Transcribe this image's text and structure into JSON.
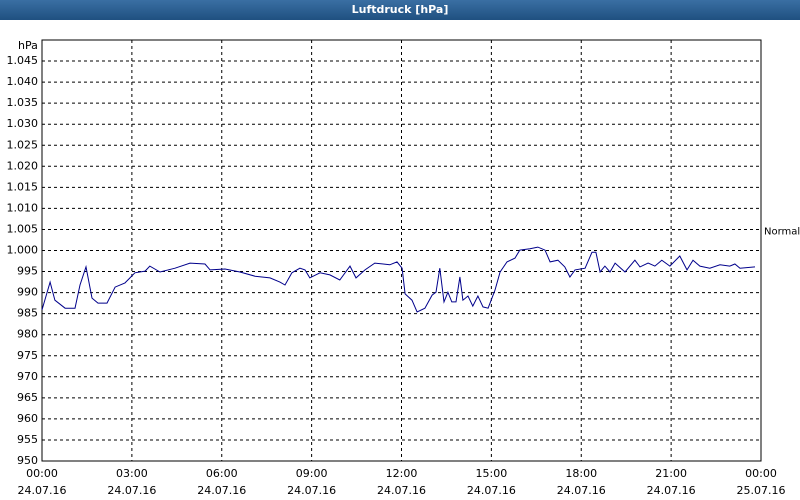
{
  "chart_data": {
    "type": "line",
    "title": "Luftdruck [hPa]",
    "y_label": "hPa",
    "x": [
      0,
      0.27,
      0.43,
      0.77,
      1.1,
      1.27,
      1.47,
      1.67,
      1.87,
      2.17,
      2.44,
      2.77,
      3.1,
      3.44,
      3.6,
      3.94,
      4.44,
      4.94,
      5.44,
      5.61,
      6.11,
      6.61,
      7.11,
      7.61,
      7.94,
      8.11,
      8.34,
      8.61,
      8.78,
      8.94,
      9.28,
      9.61,
      9.94,
      10.28,
      10.48,
      10.78,
      11.11,
      11.61,
      11.85,
      12.02,
      12.12,
      12.35,
      12.52,
      12.78,
      13.02,
      13.15,
      13.28,
      13.42,
      13.55,
      13.68,
      13.82,
      13.95,
      14.05,
      14.22,
      14.38,
      14.55,
      14.72,
      14.89,
      15.12,
      15.29,
      15.52,
      15.79,
      15.95,
      16.29,
      16.55,
      16.79,
      16.96,
      17.22,
      17.45,
      17.62,
      17.79,
      18.13,
      18.36,
      18.49,
      18.63,
      18.79,
      18.96,
      19.13,
      19.46,
      19.79,
      19.96,
      20.23,
      20.46,
      20.69,
      20.96,
      21.29,
      21.53,
      21.73,
      21.96,
      22.29,
      22.63,
      22.96,
      23.13,
      23.3,
      23.8
    ],
    "series": [
      {
        "name": "Luftdruck",
        "color": "#00008b",
        "values": [
          985.9,
          992.5,
          988.2,
          986.3,
          986.3,
          991.8,
          996.1,
          988.7,
          987.5,
          987.5,
          991.3,
          992.3,
          994.7,
          995.1,
          996.3,
          994.9,
          995.8,
          997.0,
          996.8,
          995.4,
          995.6,
          994.9,
          993.9,
          993.5,
          992.5,
          991.8,
          994.7,
          995.8,
          995.4,
          993.5,
          994.7,
          994.2,
          993.0,
          996.3,
          993.5,
          995.4,
          997.0,
          996.6,
          997.3,
          995.8,
          989.7,
          988.2,
          985.4,
          986.3,
          989.4,
          990.1,
          995.8,
          987.8,
          990.1,
          987.8,
          987.8,
          993.7,
          988.2,
          989.2,
          986.8,
          989.2,
          986.6,
          986.3,
          990.6,
          994.9,
          997.3,
          998.2,
          1000.1,
          1000.4,
          1000.8,
          1000.1,
          997.3,
          997.7,
          996.1,
          993.7,
          995.4,
          995.8,
          999.6,
          999.6,
          994.9,
          996.3,
          994.9,
          997.0,
          994.9,
          997.7,
          996.1,
          997.0,
          996.3,
          997.7,
          996.3,
          998.7,
          995.4,
          997.7,
          996.3,
          995.8,
          996.6,
          996.3,
          996.8,
          995.8,
          996.1
        ]
      }
    ],
    "xlim": [
      0,
      24
    ],
    "xticks": [
      {
        "value": 0,
        "label": "00:00\n24.07.16"
      },
      {
        "value": 3,
        "label": "03:00\n24.07.16"
      },
      {
        "value": 6,
        "label": "06:00\n24.07.16"
      },
      {
        "value": 9,
        "label": "09:00\n24.07.16"
      },
      {
        "value": 12,
        "label": "12:00\n24.07.16"
      },
      {
        "value": 15,
        "label": "15:00\n24.07.16"
      },
      {
        "value": 18,
        "label": "18:00\n24.07.16"
      },
      {
        "value": 21,
        "label": "21:00\n24.07.16"
      },
      {
        "value": 24,
        "label": "00:00\n25.07.16"
      }
    ],
    "ylim": [
      950,
      1050
    ],
    "yticks": [
      950,
      955,
      960,
      965,
      970,
      975,
      980,
      985,
      990,
      995,
      {
        "value": 1000,
        "label": "1.000"
      },
      {
        "value": 1005,
        "label": "1.005"
      },
      {
        "value": 1010,
        "label": "1.010"
      },
      {
        "value": 1015,
        "label": "1.015"
      },
      {
        "value": 1020,
        "label": "1.020"
      },
      {
        "value": 1025,
        "label": "1.025"
      },
      {
        "value": 1030,
        "label": "1.030"
      },
      {
        "value": 1035,
        "label": "1.035"
      },
      {
        "value": 1040,
        "label": "1.040"
      },
      {
        "value": 1045,
        "label": "1.045"
      }
    ],
    "grid": true,
    "annotations": [
      {
        "text": "Normal",
        "y": 1004.5
      }
    ]
  }
}
